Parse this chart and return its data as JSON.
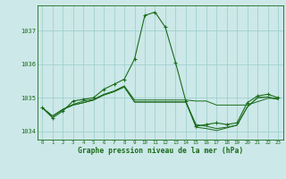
{
  "x": [
    0,
    1,
    2,
    3,
    4,
    5,
    6,
    7,
    8,
    9,
    10,
    11,
    12,
    13,
    14,
    15,
    16,
    17,
    18,
    19,
    20,
    21,
    22,
    23
  ],
  "line1": [
    1034.7,
    1034.4,
    1034.6,
    1034.9,
    1034.95,
    1035.0,
    1035.25,
    1035.4,
    1035.55,
    1036.15,
    1037.45,
    1037.55,
    1037.1,
    1036.05,
    1034.9,
    1034.15,
    1034.2,
    1034.25,
    1034.2,
    1034.25,
    1034.85,
    1035.05,
    1035.1,
    1035.0
  ],
  "line2": [
    1034.7,
    1034.45,
    1034.65,
    1034.8,
    1034.9,
    1034.95,
    1035.1,
    1035.2,
    1035.35,
    1034.93,
    1034.93,
    1034.93,
    1034.93,
    1034.93,
    1034.93,
    1034.9,
    1034.9,
    1034.78,
    1034.78,
    1034.78,
    1034.78,
    1034.88,
    1034.98,
    1034.98
  ],
  "line3": [
    1034.7,
    1034.45,
    1034.65,
    1034.78,
    1034.85,
    1034.93,
    1035.08,
    1035.18,
    1035.32,
    1034.87,
    1034.87,
    1034.87,
    1034.87,
    1034.87,
    1034.87,
    1034.2,
    1034.15,
    1034.08,
    1034.12,
    1034.18,
    1034.72,
    1035.0,
    1035.02,
    1034.95
  ],
  "line4": [
    1034.7,
    1034.45,
    1034.65,
    1034.78,
    1034.85,
    1034.93,
    1035.08,
    1035.18,
    1035.32,
    1034.87,
    1034.87,
    1034.87,
    1034.87,
    1034.87,
    1034.87,
    1034.12,
    1034.08,
    1034.02,
    1034.1,
    1034.18,
    1034.72,
    1035.0,
    1035.02,
    1034.95
  ],
  "ylim": [
    1033.75,
    1037.75
  ],
  "yticks": [
    1034,
    1035,
    1036,
    1037
  ],
  "xticks": [
    0,
    1,
    2,
    3,
    4,
    5,
    6,
    7,
    8,
    9,
    10,
    11,
    12,
    13,
    14,
    15,
    16,
    17,
    18,
    19,
    20,
    21,
    22,
    23
  ],
  "xlabel": "Graphe pression niveau de la mer (hPa)",
  "line_color": "#1a6b1a",
  "bg_color": "#cce8e8",
  "grid_color": "#99cccc",
  "marker": "+",
  "marker_size": 3.5,
  "marker_lw": 0.8
}
